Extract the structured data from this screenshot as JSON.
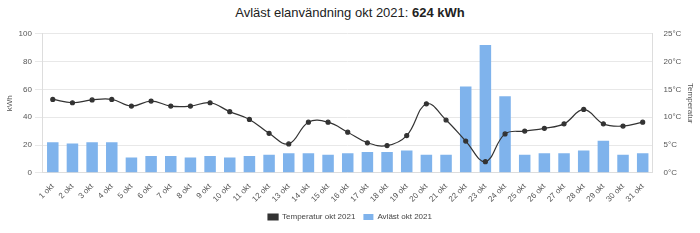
{
  "chart_data": {
    "type": "bar",
    "title": "Avläst elanvändning okt 2021: 624 kWh",
    "categories": [
      "1 okt",
      "2 okt",
      "3 okt",
      "4 okt",
      "5 okt",
      "6 okt",
      "7 okt",
      "8 okt",
      "9 okt",
      "10 okt",
      "11 okt",
      "12 okt",
      "13 okt",
      "14 okt",
      "15 okt",
      "16 okt",
      "17 okt",
      "18 okt",
      "19 okt",
      "20 okt",
      "21 okt",
      "22 okt",
      "23 okt",
      "24 okt",
      "25 okt",
      "26 okt",
      "27 okt",
      "28 okt",
      "29 okt",
      "30 okt",
      "31 okt"
    ],
    "series": [
      {
        "name": "Avläst okt 2021",
        "type": "bar",
        "color": "#7fb3ec",
        "values": [
          22,
          21,
          22,
          22,
          11,
          12,
          12,
          11,
          12,
          11,
          12,
          13,
          14,
          14,
          13,
          14,
          15,
          15,
          16,
          13,
          13,
          62,
          92,
          55,
          13,
          14,
          14,
          16,
          23,
          13,
          14
        ]
      },
      {
        "name": "Temperatur okt 2021",
        "type": "line",
        "axis": "y2",
        "color": "#333333",
        "marker": "circle",
        "line_style": "solid",
        "values": [
          13.2,
          12.6,
          13.1,
          13.2,
          12.0,
          12.9,
          12.0,
          12.0,
          12.6,
          11.0,
          9.6,
          7.1,
          5.2,
          9.1,
          9.1,
          7.3,
          5.4,
          4.9,
          6.7,
          12.4,
          9.5,
          5.7,
          2.0,
          7.0,
          7.5,
          8.0,
          8.8,
          11.4,
          8.8,
          8.4,
          9.1
        ]
      }
    ],
    "y_label": "kWh",
    "y2_label": "Temperatur",
    "ylim": [
      0,
      100
    ],
    "yticks": [
      0,
      20,
      40,
      60,
      80,
      100
    ],
    "y2lim": [
      0,
      25
    ],
    "y2ticks": [
      {
        "value": 0,
        "label": "0°C"
      },
      {
        "value": 5,
        "label": "5°C"
      },
      {
        "value": 10,
        "label": "10°C"
      },
      {
        "value": 15,
        "label": "15°C"
      },
      {
        "value": 20,
        "label": "20°C"
      },
      {
        "value": 25,
        "label": "25°C"
      }
    ],
    "grid": true,
    "legend": "bottom"
  }
}
